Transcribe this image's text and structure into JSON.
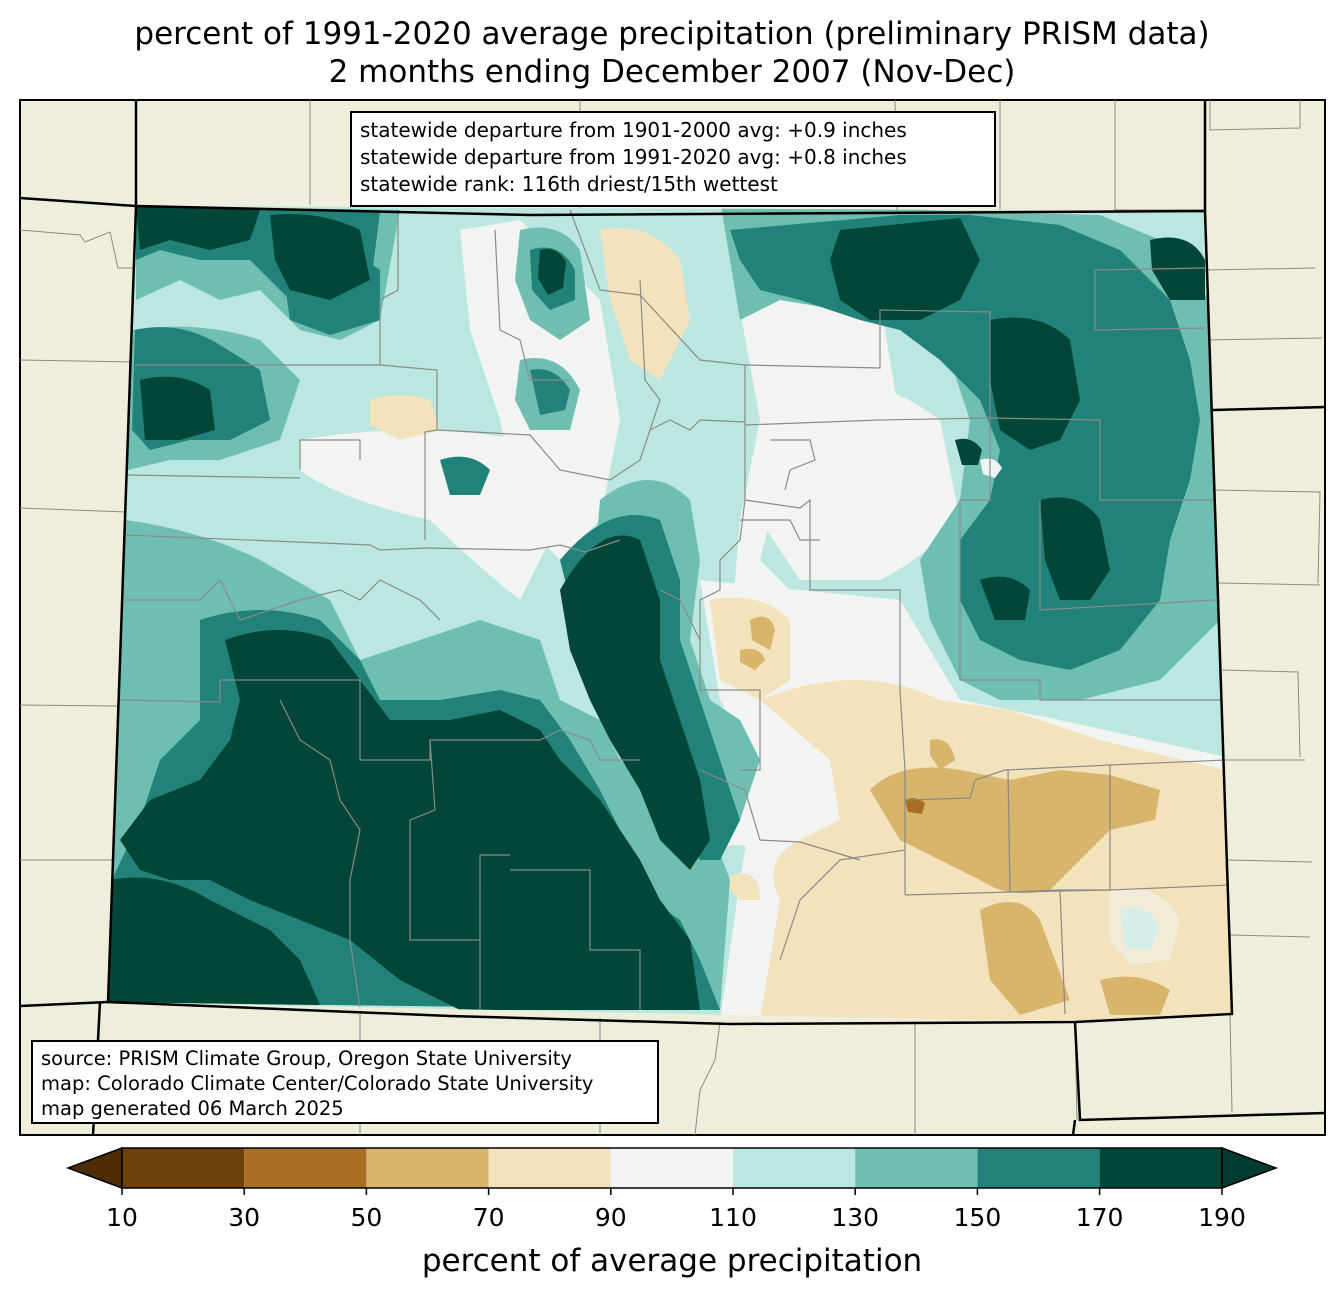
{
  "title_line1": "percent of 1991-2020 average precipitation (preliminary PRISM data)",
  "title_line2": "2 months ending December 2007 (Nov-Dec)",
  "stats": {
    "line1": "statewide departure from 1901-2000 avg: +0.9 inches",
    "line2": "statewide departure from 1991-2020 avg: +0.8 inches",
    "line3": "statewide rank: 116th driest/15th wettest"
  },
  "source": {
    "line1": "source: PRISM Climate Group, Oregon State University",
    "line2": "map: Colorado Climate Center/Colorado State University",
    "line3": "map generated 06 March 2025"
  },
  "colorbar": {
    "label": "percent of average precipitation",
    "ticks": [
      "10",
      "30",
      "50",
      "70",
      "90",
      "110",
      "130",
      "150",
      "170",
      "190"
    ],
    "colors": [
      "#4f2c06",
      "#6e400b",
      "#a86e23",
      "#d8b46c",
      "#f3e3bd",
      "#f2f4f2",
      "#bce6e0",
      "#6ebfb2",
      "#218279",
      "#014637",
      "#023c30"
    ]
  },
  "map_colors": {
    "background_land": "#efeedb",
    "county_lines": "#8a8a8a",
    "state_lines": "#000000"
  }
}
